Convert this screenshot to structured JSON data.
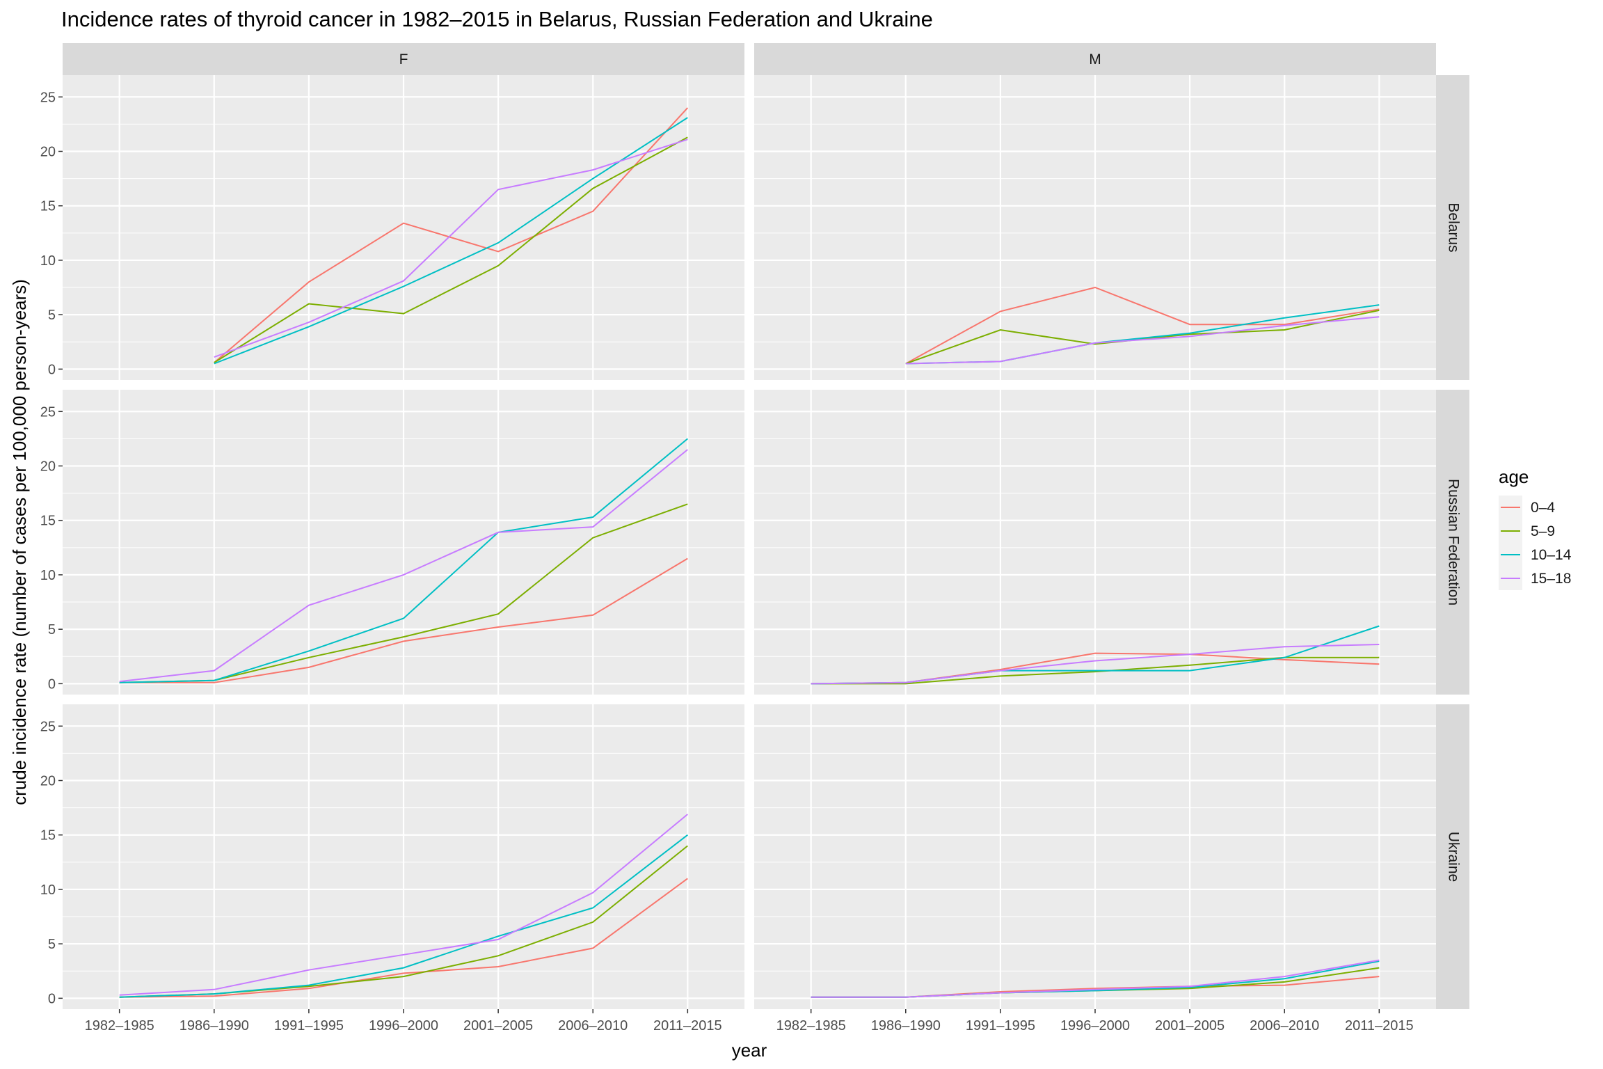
{
  "chart_data": {
    "type": "line",
    "title": "Incidence rates of thyroid cancer in 1982–2015 in Belarus, Russian Federation and Ukraine",
    "xlabel": "year",
    "ylabel": "crude incidence rate (number of cases per 100,000 person-years)",
    "x": [
      "1982–1985",
      "1986–1990",
      "1991–1995",
      "1996–2000",
      "2001–2005",
      "2006–2010",
      "2011–2015"
    ],
    "ylim": [
      -1,
      27
    ],
    "y_ticks": [
      0,
      5,
      10,
      15,
      20,
      25
    ],
    "grid": true,
    "facet_columns": [
      "F",
      "M"
    ],
    "facet_rows": [
      "Belarus",
      "Russian Federation",
      "Ukraine"
    ],
    "legend": {
      "title": "age",
      "position": "right",
      "entries": [
        {
          "name": "0–4",
          "color": "#F8766D"
        },
        {
          "name": "5–9",
          "color": "#7CAE00"
        },
        {
          "name": "10–14",
          "color": "#00BFC4"
        },
        {
          "name": "15–18",
          "color": "#C77CFF"
        }
      ]
    },
    "panels": [
      {
        "column": "F",
        "row": "Belarus",
        "series": [
          {
            "name": "0–4",
            "values": [
              null,
              0.6,
              8.0,
              13.4,
              10.8,
              14.5,
              24.0
            ]
          },
          {
            "name": "5–9",
            "values": [
              null,
              0.6,
              6.0,
              5.1,
              9.5,
              16.6,
              21.3
            ]
          },
          {
            "name": "10–14",
            "values": [
              null,
              0.5,
              3.9,
              7.6,
              11.6,
              17.5,
              23.1
            ]
          },
          {
            "name": "15–18",
            "values": [
              null,
              1.1,
              4.3,
              8.1,
              16.5,
              18.3,
              21.1
            ]
          }
        ]
      },
      {
        "column": "M",
        "row": "Belarus",
        "series": [
          {
            "name": "0–4",
            "values": [
              null,
              0.5,
              5.3,
              7.5,
              4.1,
              4.1,
              5.5
            ]
          },
          {
            "name": "5–9",
            "values": [
              null,
              0.5,
              3.6,
              2.3,
              3.2,
              3.6,
              5.4
            ]
          },
          {
            "name": "10–14",
            "values": [
              null,
              0.5,
              0.7,
              2.4,
              3.3,
              4.7,
              5.9
            ]
          },
          {
            "name": "15–18",
            "values": [
              null,
              0.5,
              0.7,
              2.4,
              3.0,
              4.0,
              4.8
            ]
          }
        ]
      },
      {
        "column": "F",
        "row": "Russian Federation",
        "series": [
          {
            "name": "0–4",
            "values": [
              0.1,
              0.1,
              1.5,
              3.9,
              5.2,
              6.3,
              11.5
            ]
          },
          {
            "name": "5–9",
            "values": [
              0.1,
              0.3,
              2.4,
              4.3,
              6.4,
              13.4,
              16.5
            ]
          },
          {
            "name": "10–14",
            "values": [
              0.1,
              0.3,
              3.0,
              6.0,
              13.9,
              15.3,
              22.5
            ]
          },
          {
            "name": "15–18",
            "values": [
              0.2,
              1.2,
              7.2,
              10.0,
              13.9,
              14.4,
              21.5
            ]
          }
        ]
      },
      {
        "column": "M",
        "row": "Russian Federation",
        "series": [
          {
            "name": "0–4",
            "values": [
              0.0,
              0.1,
              1.3,
              2.8,
              2.7,
              2.2,
              1.8
            ]
          },
          {
            "name": "5–9",
            "values": [
              0.0,
              0.0,
              0.7,
              1.1,
              1.7,
              2.4,
              2.4
            ]
          },
          {
            "name": "10–14",
            "values": [
              0.0,
              0.1,
              1.2,
              1.2,
              1.2,
              2.4,
              5.3
            ]
          },
          {
            "name": "15–18",
            "values": [
              0.0,
              0.1,
              1.2,
              2.1,
              2.7,
              3.4,
              3.6
            ]
          }
        ]
      },
      {
        "column": "F",
        "row": "Ukraine",
        "series": [
          {
            "name": "0–4",
            "values": [
              0.1,
              0.2,
              0.9,
              2.3,
              2.9,
              4.6,
              11.0
            ]
          },
          {
            "name": "5–9",
            "values": [
              0.1,
              0.4,
              1.1,
              2.0,
              3.9,
              7.0,
              14.0
            ]
          },
          {
            "name": "10–14",
            "values": [
              0.1,
              0.4,
              1.2,
              2.8,
              5.7,
              8.3,
              15.0
            ]
          },
          {
            "name": "15–18",
            "values": [
              0.3,
              0.8,
              2.6,
              4.0,
              5.4,
              9.7,
              16.9
            ]
          }
        ]
      },
      {
        "column": "M",
        "row": "Ukraine",
        "series": [
          {
            "name": "0–4",
            "values": [
              0.1,
              0.1,
              0.6,
              0.9,
              1.1,
              1.2,
              2.0
            ]
          },
          {
            "name": "5–9",
            "values": [
              0.1,
              0.1,
              0.5,
              0.7,
              0.9,
              1.5,
              2.8
            ]
          },
          {
            "name": "10–14",
            "values": [
              0.1,
              0.1,
              0.5,
              0.7,
              1.0,
              1.8,
              3.4
            ]
          },
          {
            "name": "15–18",
            "values": [
              0.1,
              0.1,
              0.5,
              0.8,
              1.1,
              2.0,
              3.5
            ]
          }
        ]
      }
    ]
  }
}
